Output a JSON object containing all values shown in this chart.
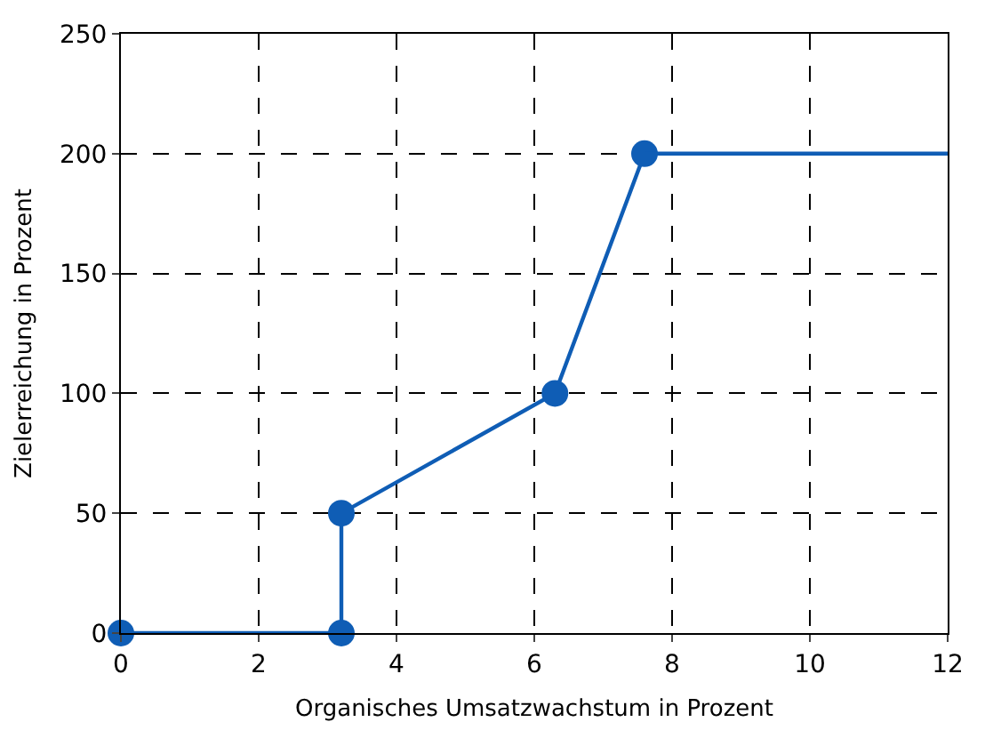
{
  "chart_data": {
    "type": "line",
    "xlabel": "Organisches Umsatzwachstum in Prozent",
    "ylabel": "Zielerreichung in Prozent",
    "series": [
      {
        "color": "#0f5db5",
        "x": [
          0,
          3.2,
          3.2,
          6.3,
          7.6
        ],
        "values": [
          0,
          0,
          50,
          100,
          200
        ],
        "marker": "circle"
      },
      {
        "color": "#0f5db5",
        "x": [
          7.6,
          12
        ],
        "values": [
          200,
          200
        ],
        "marker": "none"
      }
    ],
    "xlim": [
      0,
      12
    ],
    "xticks": [
      0,
      2,
      4,
      6,
      8,
      10,
      12
    ],
    "ylim": [
      0,
      250
    ],
    "yticks": [
      0,
      50,
      100,
      150,
      200,
      250
    ],
    "grid": true,
    "line_style": "solid"
  }
}
